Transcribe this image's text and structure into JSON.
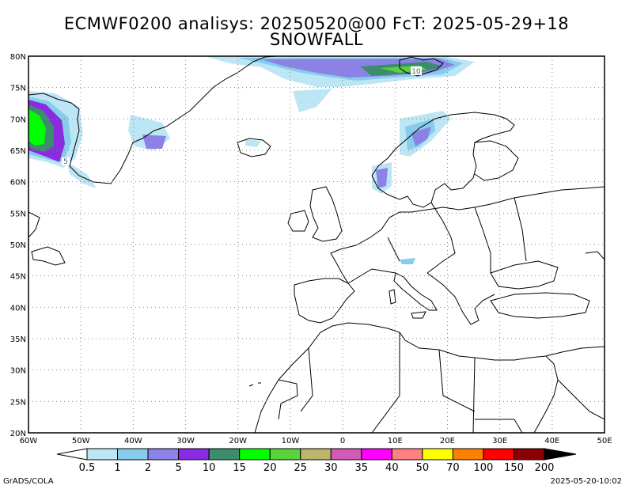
{
  "title": {
    "line1": "ECMWF0200 analisys: 20250520@00 FcT: 2025-05-29+18",
    "line2": "SNOWFALL"
  },
  "axes": {
    "lat_labels": [
      "80N",
      "75N",
      "70N",
      "65N",
      "60N",
      "55N",
      "50N",
      "45N",
      "40N",
      "35N",
      "30N",
      "25N",
      "20N"
    ],
    "lon_labels": [
      "60W",
      "50W",
      "40W",
      "30W",
      "20W",
      "10W",
      "0",
      "10E",
      "20E",
      "30E",
      "40E",
      "50E"
    ],
    "lat_range": [
      20,
      80
    ],
    "lon_range": [
      -60,
      50
    ],
    "grid": true
  },
  "contour_labels": [
    "10",
    "5"
  ],
  "colorbar": {
    "labels": [
      "0.5",
      "1",
      "2",
      "5",
      "10",
      "15",
      "20",
      "25",
      "30",
      "35",
      "40",
      "50",
      "70",
      "100",
      "150",
      "200"
    ],
    "colors": [
      "#ffffff",
      "#bde6f5",
      "#87cdeb",
      "#8c82e6",
      "#8a2be2",
      "#3c8c6e",
      "#00ff00",
      "#5ad23c",
      "#bdb46e",
      "#d25ab4",
      "#ff00ff",
      "#ff8080",
      "#ffff00",
      "#ff8000",
      "#ff0000",
      "#8b0000",
      "#000000"
    ]
  },
  "credits": {
    "left": "GrADS/COLA",
    "right": "2025-05-20-10:02"
  }
}
